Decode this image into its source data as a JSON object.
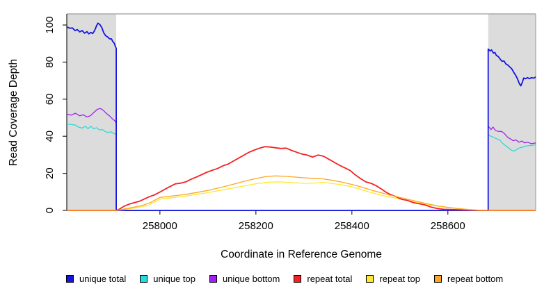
{
  "chart_data": {
    "type": "line",
    "title": "",
    "xlabel": "Coordinate in Reference Genome",
    "ylabel": "Read Coverage Depth",
    "xlim": [
      257806,
      258783
    ],
    "ylim": [
      0,
      106
    ],
    "x_ticks": [
      258000,
      258200,
      258400,
      258600
    ],
    "y_ticks": [
      0,
      20,
      40,
      60,
      80,
      100
    ],
    "grid": false,
    "legend_position": "bottom",
    "background_color": "#ffffff",
    "shaded_region_color": "#dcdcdc",
    "frame_top_color": "#9a9a9a",
    "axis_color": "#222222",
    "shaded_regions": [
      {
        "x0": 257806,
        "x1": 257909
      },
      {
        "x0": 258684,
        "x1": 258783
      }
    ],
    "series": [
      {
        "name": "unique total",
        "color": "#1414e0",
        "width": 1.8,
        "z": 3,
        "points": [
          [
            257806,
            99
          ],
          [
            257812,
            98.3
          ],
          [
            257818,
            98.4
          ],
          [
            257823,
            97
          ],
          [
            257828,
            97.5
          ],
          [
            257833,
            96.3
          ],
          [
            257838,
            97
          ],
          [
            257843,
            95.6
          ],
          [
            257848,
            96.4
          ],
          [
            257852,
            95.2
          ],
          [
            257856,
            96
          ],
          [
            257860,
            95.4
          ],
          [
            257864,
            97
          ],
          [
            257868,
            99.6
          ],
          [
            257871,
            101
          ],
          [
            257875,
            100.2
          ],
          [
            257879,
            98.6
          ],
          [
            257883,
            95.8
          ],
          [
            257887,
            94.2
          ],
          [
            257891,
            93.6
          ],
          [
            257895,
            92.6
          ],
          [
            257899,
            92.5
          ],
          [
            257902,
            91
          ],
          [
            257905,
            90.2
          ],
          [
            257907,
            88.6
          ],
          [
            257909,
            87.4
          ],
          [
            257909,
            0
          ],
          [
            258684,
            0
          ],
          [
            258684,
            87
          ],
          [
            258688,
            86
          ],
          [
            258691,
            86.6
          ],
          [
            258695,
            84.8
          ],
          [
            258698,
            85.2
          ],
          [
            258701,
            83.6
          ],
          [
            258705,
            83
          ],
          [
            258709,
            81.6
          ],
          [
            258713,
            80.4
          ],
          [
            258717,
            80.6
          ],
          [
            258721,
            79
          ],
          [
            258725,
            78.4
          ],
          [
            258729,
            77.4
          ],
          [
            258733,
            76.4
          ],
          [
            258737,
            74.6
          ],
          [
            258741,
            73
          ],
          [
            258745,
            71
          ],
          [
            258749,
            68.4
          ],
          [
            258752,
            67.2
          ],
          [
            258755,
            69
          ],
          [
            258758,
            71.4
          ],
          [
            258762,
            71
          ],
          [
            258766,
            71.6
          ],
          [
            258770,
            71
          ],
          [
            258774,
            71.6
          ],
          [
            258779,
            71.3
          ],
          [
            258783,
            72
          ]
        ]
      },
      {
        "name": "unique top",
        "color": "#2adada",
        "width": 1.3,
        "z": 1,
        "points": [
          [
            257806,
            46.4
          ],
          [
            257815,
            46.4
          ],
          [
            257824,
            46
          ],
          [
            257830,
            45
          ],
          [
            257838,
            44.4
          ],
          [
            257845,
            45.4
          ],
          [
            257850,
            44
          ],
          [
            257856,
            45.4
          ],
          [
            257862,
            44
          ],
          [
            257868,
            44.6
          ],
          [
            257874,
            43.4
          ],
          [
            257880,
            43.6
          ],
          [
            257886,
            42.6
          ],
          [
            257892,
            42
          ],
          [
            257898,
            42.4
          ],
          [
            257903,
            41.6
          ],
          [
            257909,
            41
          ],
          [
            257909,
            0
          ],
          [
            258684,
            0
          ],
          [
            258684,
            40.6
          ],
          [
            258692,
            39.8
          ],
          [
            258700,
            38.8
          ],
          [
            258708,
            38
          ],
          [
            258714,
            36.2
          ],
          [
            258720,
            35
          ],
          [
            258727,
            33.6
          ],
          [
            258733,
            32.4
          ],
          [
            258738,
            32
          ],
          [
            258744,
            33
          ],
          [
            258750,
            33.8
          ],
          [
            258757,
            34.2
          ],
          [
            258764,
            34.8
          ],
          [
            258772,
            35
          ],
          [
            258783,
            35.4
          ]
        ]
      },
      {
        "name": "unique bottom",
        "color": "#a020f0",
        "width": 1.3,
        "z": 2,
        "points": [
          [
            257806,
            52
          ],
          [
            257815,
            51.4
          ],
          [
            257824,
            52.4
          ],
          [
            257833,
            51
          ],
          [
            257840,
            51.6
          ],
          [
            257848,
            50.4
          ],
          [
            257855,
            51
          ],
          [
            257863,
            53
          ],
          [
            257870,
            54.6
          ],
          [
            257876,
            55
          ],
          [
            257882,
            54
          ],
          [
            257888,
            52.4
          ],
          [
            257895,
            51
          ],
          [
            257901,
            49.4
          ],
          [
            257906,
            48.4
          ],
          [
            257909,
            47
          ],
          [
            257909,
            0
          ],
          [
            258684,
            0
          ],
          [
            258684,
            45.5
          ],
          [
            258690,
            43.6
          ],
          [
            258694,
            45
          ],
          [
            258699,
            43.2
          ],
          [
            258705,
            42.6
          ],
          [
            258712,
            42.6
          ],
          [
            258718,
            41.4
          ],
          [
            258724,
            39.6
          ],
          [
            258730,
            38.6
          ],
          [
            258736,
            37.6
          ],
          [
            258742,
            38
          ],
          [
            258748,
            36.8
          ],
          [
            258754,
            37.4
          ],
          [
            258760,
            36.4
          ],
          [
            258766,
            36.8
          ],
          [
            258774,
            36
          ],
          [
            258783,
            36.4
          ]
        ]
      },
      {
        "name": "repeat total",
        "color": "#f32121",
        "width": 1.8,
        "z": 5,
        "points": [
          [
            257806,
            0
          ],
          [
            257909,
            0
          ],
          [
            257915,
            0.6
          ],
          [
            257925,
            2.2
          ],
          [
            257936,
            3.4
          ],
          [
            257947,
            4.2
          ],
          [
            257957,
            4.9
          ],
          [
            257968,
            6.2
          ],
          [
            257978,
            7.4
          ],
          [
            257989,
            8.4
          ],
          [
            258000,
            9.9
          ],
          [
            258011,
            11.5
          ],
          [
            258022,
            13
          ],
          [
            258032,
            14.3
          ],
          [
            258043,
            14.7
          ],
          [
            258054,
            15.4
          ],
          [
            258065,
            16.8
          ],
          [
            258076,
            18
          ],
          [
            258087,
            19.3
          ],
          [
            258098,
            20.6
          ],
          [
            258109,
            21.6
          ],
          [
            258120,
            22.6
          ],
          [
            258131,
            24
          ],
          [
            258142,
            25
          ],
          [
            258153,
            26.6
          ],
          [
            258164,
            28.2
          ],
          [
            258175,
            29.8
          ],
          [
            258186,
            31.4
          ],
          [
            258197,
            32.6
          ],
          [
            258208,
            33.6
          ],
          [
            258219,
            34.4
          ],
          [
            258230,
            34.2
          ],
          [
            258241,
            33.8
          ],
          [
            258252,
            33.4
          ],
          [
            258263,
            33.6
          ],
          [
            258274,
            32.4
          ],
          [
            258285,
            31.4
          ],
          [
            258296,
            30.4
          ],
          [
            258307,
            29.8
          ],
          [
            258318,
            28.8
          ],
          [
            258330,
            29.9
          ],
          [
            258341,
            29.2
          ],
          [
            258352,
            27.6
          ],
          [
            258363,
            26
          ],
          [
            258374,
            24.4
          ],
          [
            258385,
            23
          ],
          [
            258396,
            21.6
          ],
          [
            258407,
            19.2
          ],
          [
            258418,
            17.2
          ],
          [
            258429,
            15.4
          ],
          [
            258440,
            14.6
          ],
          [
            258450,
            13.4
          ],
          [
            258460,
            11.8
          ],
          [
            258470,
            10
          ],
          [
            258480,
            8.6
          ],
          [
            258492,
            7.4
          ],
          [
            258504,
            6
          ],
          [
            258516,
            5.4
          ],
          [
            258528,
            4.2
          ],
          [
            258540,
            3.6
          ],
          [
            258552,
            3
          ],
          [
            258565,
            1.8
          ],
          [
            258578,
            1
          ],
          [
            258592,
            0.6
          ],
          [
            258615,
            0.4
          ],
          [
            258645,
            0.2
          ],
          [
            258670,
            0
          ],
          [
            258783,
            0
          ]
        ]
      },
      {
        "name": "repeat top",
        "color": "#ffe82e",
        "width": 1.3,
        "z": 4,
        "points": [
          [
            257806,
            0
          ],
          [
            257909,
            0
          ],
          [
            257922,
            0.4
          ],
          [
            257940,
            1
          ],
          [
            257958,
            1.8
          ],
          [
            257976,
            2.8
          ],
          [
            257990,
            4.6
          ],
          [
            258000,
            6.1
          ],
          [
            258025,
            6.8
          ],
          [
            258050,
            7.6
          ],
          [
            258075,
            8.6
          ],
          [
            258100,
            9.6
          ],
          [
            258125,
            10.8
          ],
          [
            258150,
            12
          ],
          [
            258175,
            13.2
          ],
          [
            258200,
            14.4
          ],
          [
            258225,
            15.2
          ],
          [
            258250,
            15.4
          ],
          [
            258275,
            15
          ],
          [
            258300,
            14.6
          ],
          [
            258325,
            14.8
          ],
          [
            258340,
            15.2
          ],
          [
            258355,
            14.6
          ],
          [
            258375,
            14
          ],
          [
            258395,
            13
          ],
          [
            258415,
            11.6
          ],
          [
            258435,
            10
          ],
          [
            258455,
            8.6
          ],
          [
            258475,
            7.4
          ],
          [
            258495,
            6.4
          ],
          [
            258515,
            5.4
          ],
          [
            258535,
            4.4
          ],
          [
            258555,
            3.2
          ],
          [
            258575,
            2.4
          ],
          [
            258595,
            1.8
          ],
          [
            258615,
            1.2
          ],
          [
            258640,
            0.6
          ],
          [
            258665,
            0.1
          ],
          [
            258680,
            0
          ],
          [
            258783,
            0
          ]
        ]
      },
      {
        "name": "repeat bottom",
        "color": "#ffa524",
        "width": 1.3,
        "z": 6,
        "points": [
          [
            257806,
            0
          ],
          [
            257909,
            0
          ],
          [
            257920,
            0.5
          ],
          [
            257935,
            1.2
          ],
          [
            257950,
            2
          ],
          [
            257965,
            2.8
          ],
          [
            257980,
            4.2
          ],
          [
            257990,
            5.6
          ],
          [
            258000,
            7
          ],
          [
            258020,
            7.6
          ],
          [
            258040,
            8.2
          ],
          [
            258060,
            8.9
          ],
          [
            258080,
            9.8
          ],
          [
            258100,
            10.8
          ],
          [
            258120,
            12
          ],
          [
            258140,
            13.2
          ],
          [
            258160,
            14.6
          ],
          [
            258180,
            16
          ],
          [
            258200,
            17.2
          ],
          [
            258220,
            18.2
          ],
          [
            258240,
            18.6
          ],
          [
            258260,
            18.4
          ],
          [
            258280,
            18
          ],
          [
            258300,
            17.6
          ],
          [
            258320,
            17.3
          ],
          [
            258340,
            17
          ],
          [
            258360,
            16.2
          ],
          [
            258380,
            15.2
          ],
          [
            258400,
            14
          ],
          [
            258420,
            12.6
          ],
          [
            258440,
            11
          ],
          [
            258460,
            9.6
          ],
          [
            258480,
            8.2
          ],
          [
            258500,
            7
          ],
          [
            258520,
            5.8
          ],
          [
            258540,
            4.6
          ],
          [
            258560,
            3.4
          ],
          [
            258580,
            2.4
          ],
          [
            258600,
            1.6
          ],
          [
            258620,
            1
          ],
          [
            258645,
            0.4
          ],
          [
            258670,
            0
          ],
          [
            258783,
            0
          ]
        ]
      }
    ]
  }
}
